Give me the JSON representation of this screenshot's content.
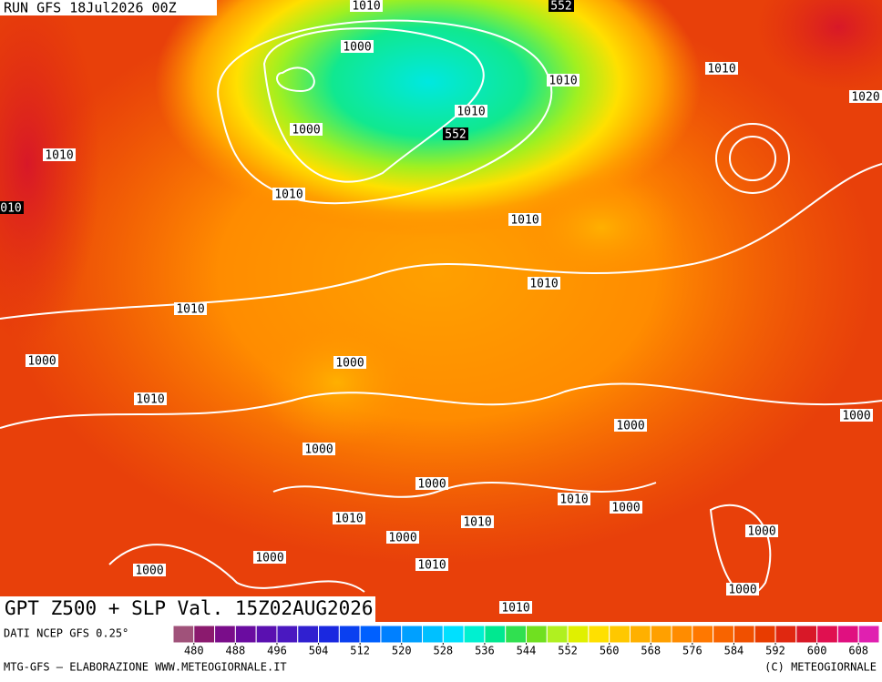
{
  "header": {
    "run": "RUN GFS 18Jul2026 00Z"
  },
  "map": {
    "title": "GPT Z500 + SLP Val. 15Z02AUG2026",
    "contour_labels": [
      "1010",
      "552",
      "1000",
      "1010",
      "1020",
      "1010",
      "1010",
      "1000",
      "552",
      "1010",
      "1010",
      "010",
      "1010",
      "1010",
      "1010",
      "1000",
      "1000",
      "1010",
      "1000",
      "1000",
      "1000",
      "1000",
      "1010",
      "1000",
      "1010",
      "1010",
      "1000",
      "1000",
      "1000",
      "1010",
      "1000",
      "1000",
      "1010"
    ]
  },
  "colorbar": {
    "source": "DATI NCEP GFS 0.25°",
    "lim": [
      476,
      612
    ],
    "ticks": [
      480,
      488,
      496,
      504,
      512,
      520,
      528,
      536,
      544,
      552,
      560,
      568,
      576,
      584,
      592,
      600,
      608
    ],
    "colors": [
      "#a0527a",
      "#8b1a6e",
      "#7a0d8a",
      "#6a0ca0",
      "#5a10b0",
      "#4a18c0",
      "#3020d0",
      "#1a28e0",
      "#0a40f0",
      "#0060ff",
      "#0080ff",
      "#00a0ff",
      "#00c0ff",
      "#00e0ff",
      "#00f0d0",
      "#00e890",
      "#30e050",
      "#70e020",
      "#b0f020",
      "#e0f000",
      "#ffe000",
      "#ffc800",
      "#ffb000",
      "#ffa000",
      "#ff8c00",
      "#ff7800",
      "#f86400",
      "#f05000",
      "#e83c00",
      "#e02810",
      "#d81828",
      "#e01050",
      "#e01080",
      "#e020b0"
    ]
  },
  "footer": {
    "left": "MTG-GFS — ELABORAZIONE WWW.METEOGIORNALE.IT",
    "right": "(C) METEOGIORNALE"
  }
}
